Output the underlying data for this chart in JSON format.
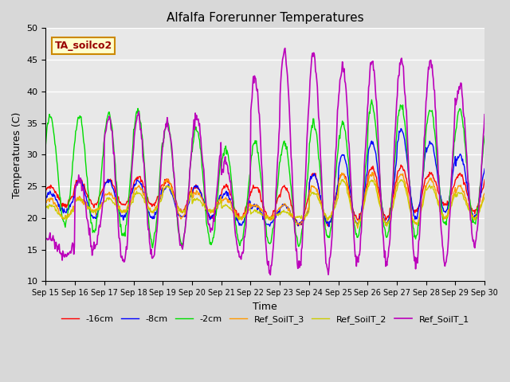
{
  "title": "Alfalfa Forerunner Temperatures",
  "xlabel": "Time",
  "ylabel": "Temperatures (C)",
  "ylim": [
    10,
    50
  ],
  "yticks": [
    10,
    15,
    20,
    25,
    30,
    35,
    40,
    45,
    50
  ],
  "annotation_text": "TA_soilco2",
  "annotation_color": "#990000",
  "annotation_bg": "#ffffcc",
  "annotation_border": "#cc8800",
  "series_colors": {
    "-16cm": "#ff0000",
    "-8cm": "#0000ff",
    "-2cm": "#00dd00",
    "Ref_SoilT_3": "#ff9900",
    "Ref_SoilT_2": "#cccc00",
    "Ref_SoilT_1": "#bb00bb"
  },
  "background_color": "#d8d8d8",
  "plot_bg": "#e8e8e8",
  "grid_color": "#ffffff",
  "num_days": 15,
  "start_day": 15,
  "figsize": [
    6.4,
    4.8
  ],
  "dpi": 100
}
